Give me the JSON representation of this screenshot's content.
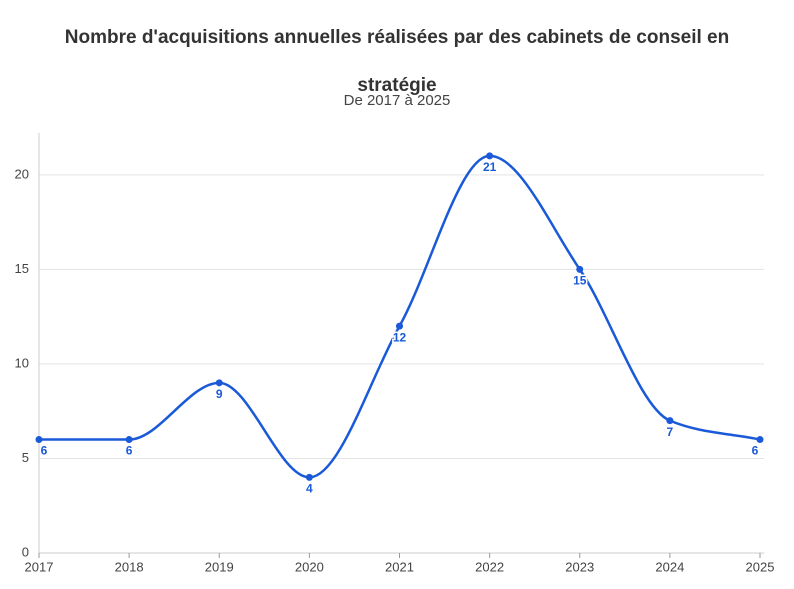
{
  "chart_data": {
    "type": "line",
    "title": "Nombre d'acquisitions annuelles réalisées par des cabinets de conseil en stratégie",
    "subtitle": "De 2017 à 2025",
    "x": [
      2017,
      2018,
      2019,
      2020,
      2021,
      2022,
      2023,
      2024,
      2025
    ],
    "xlim": [
      2017,
      2025
    ],
    "xticks": [
      2017,
      2018,
      2019,
      2020,
      2021,
      2022,
      2023,
      2024,
      2025
    ],
    "series": [
      {
        "color": "#1a5ad8",
        "values": [
          6,
          6,
          9,
          4,
          12,
          21,
          15,
          7,
          6
        ]
      }
    ],
    "ylim": [
      0,
      22
    ],
    "yticks": [
      0,
      5,
      10,
      15,
      20
    ],
    "grid": true
  }
}
